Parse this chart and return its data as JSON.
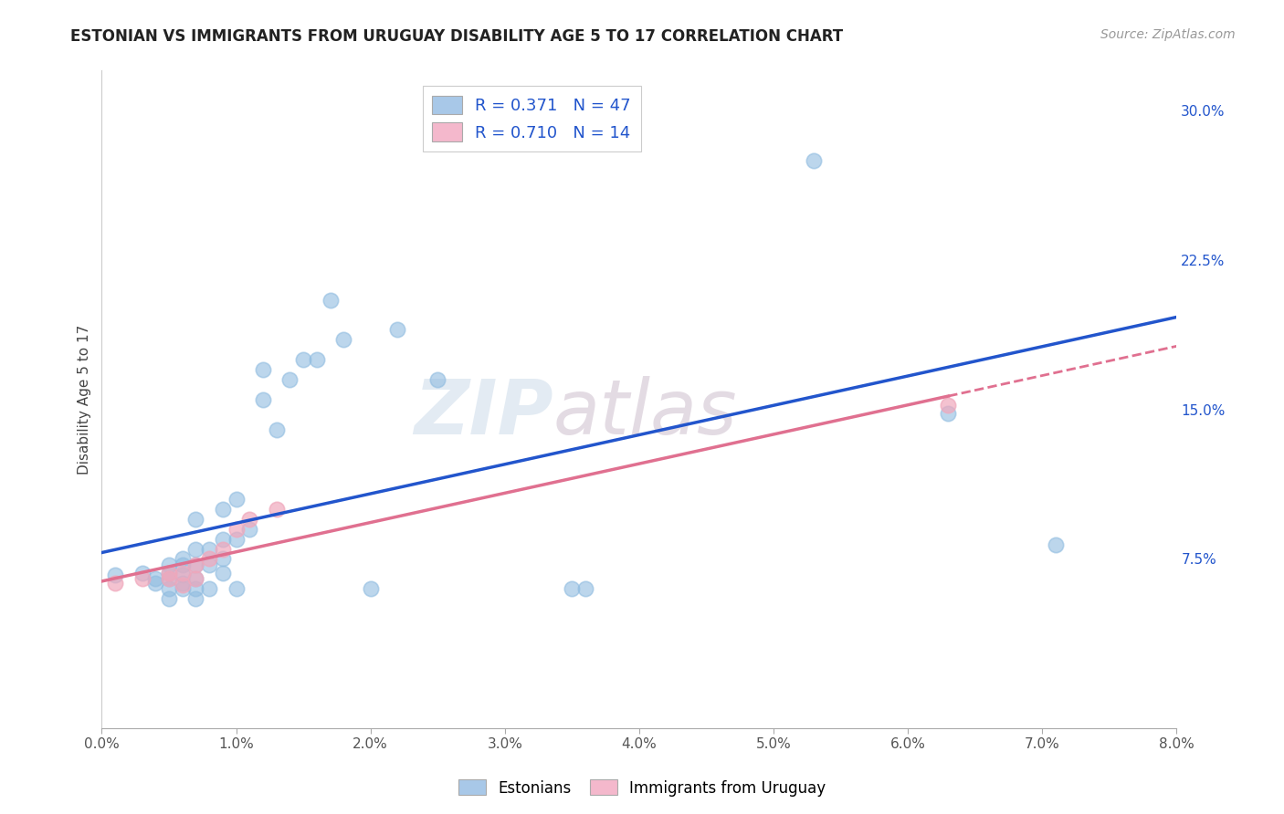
{
  "title": "ESTONIAN VS IMMIGRANTS FROM URUGUAY DISABILITY AGE 5 TO 17 CORRELATION CHART",
  "source": "Source: ZipAtlas.com",
  "ylabel": "Disability Age 5 to 17",
  "x_min": 0.0,
  "x_max": 0.08,
  "y_min": -0.01,
  "y_max": 0.32,
  "x_ticks": [
    0.0,
    0.01,
    0.02,
    0.03,
    0.04,
    0.05,
    0.06,
    0.07,
    0.08
  ],
  "x_tick_labels": [
    "0.0%",
    "1.0%",
    "2.0%",
    "3.0%",
    "4.0%",
    "5.0%",
    "6.0%",
    "7.0%",
    "8.0%"
  ],
  "y_ticks": [
    0.075,
    0.15,
    0.225,
    0.3
  ],
  "y_tick_labels": [
    "7.5%",
    "15.0%",
    "22.5%",
    "30.0%"
  ],
  "legend_label1": "Estonians",
  "legend_label2": "Immigrants from Uruguay",
  "blue_color": "#90bce0",
  "pink_color": "#f0a8bc",
  "trend_blue": "#2255cc",
  "trend_pink": "#e07090",
  "R_blue": "0.371",
  "N_blue": "47",
  "R_pink": "0.710",
  "N_pink": "14",
  "blue_points_x": [
    0.001,
    0.003,
    0.004,
    0.004,
    0.005,
    0.005,
    0.005,
    0.005,
    0.005,
    0.006,
    0.006,
    0.006,
    0.006,
    0.006,
    0.007,
    0.007,
    0.007,
    0.007,
    0.007,
    0.007,
    0.008,
    0.008,
    0.008,
    0.009,
    0.009,
    0.009,
    0.009,
    0.01,
    0.01,
    0.01,
    0.011,
    0.012,
    0.012,
    0.013,
    0.014,
    0.015,
    0.016,
    0.017,
    0.018,
    0.02,
    0.022,
    0.025,
    0.035,
    0.036,
    0.053,
    0.063,
    0.071
  ],
  "blue_points_y": [
    0.067,
    0.068,
    0.063,
    0.065,
    0.055,
    0.06,
    0.065,
    0.068,
    0.072,
    0.06,
    0.063,
    0.067,
    0.072,
    0.075,
    0.055,
    0.06,
    0.065,
    0.072,
    0.08,
    0.095,
    0.06,
    0.072,
    0.08,
    0.068,
    0.075,
    0.085,
    0.1,
    0.06,
    0.085,
    0.105,
    0.09,
    0.155,
    0.17,
    0.14,
    0.165,
    0.175,
    0.175,
    0.205,
    0.185,
    0.06,
    0.19,
    0.165,
    0.06,
    0.06,
    0.275,
    0.148,
    0.082
  ],
  "pink_points_x": [
    0.001,
    0.003,
    0.005,
    0.005,
    0.006,
    0.006,
    0.007,
    0.007,
    0.008,
    0.009,
    0.01,
    0.011,
    0.013,
    0.063
  ],
  "pink_points_y": [
    0.063,
    0.065,
    0.065,
    0.068,
    0.062,
    0.068,
    0.065,
    0.072,
    0.075,
    0.08,
    0.09,
    0.095,
    0.1,
    0.152
  ],
  "watermark_zip": "ZIP",
  "watermark_atlas": "atlas",
  "background_color": "#ffffff",
  "grid_color": "#cccccc",
  "legend_box_color_blue": "#a8c8e8",
  "legend_box_color_pink": "#f4b8cc",
  "legend_text_color": "#2255cc"
}
